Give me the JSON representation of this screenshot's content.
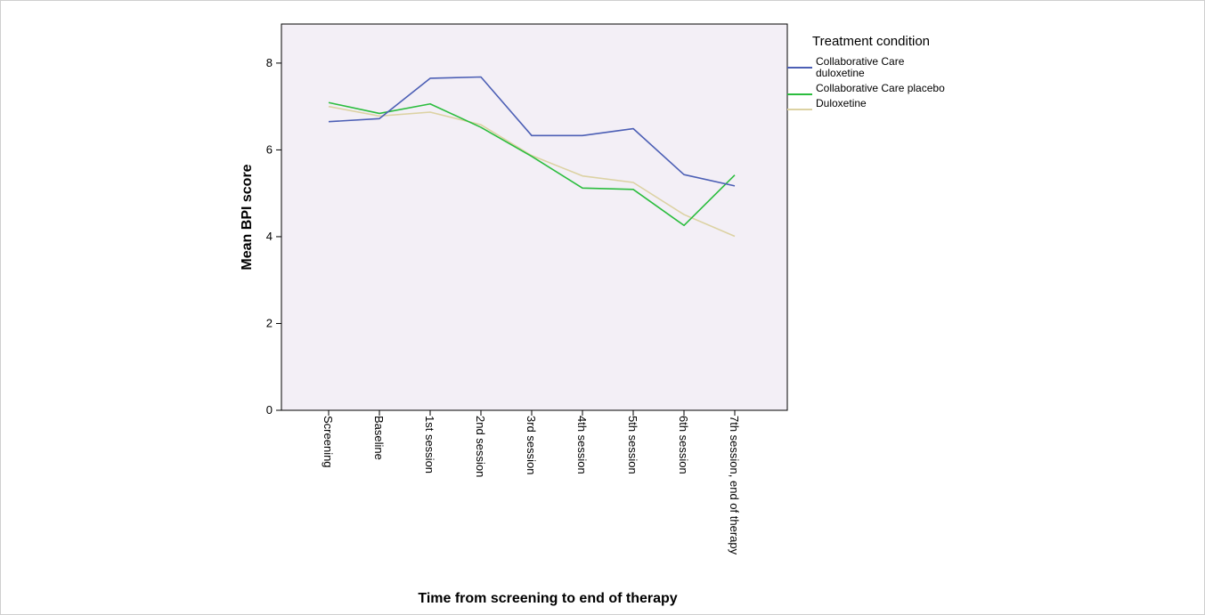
{
  "chart_data": {
    "type": "line",
    "title": "",
    "xlabel": "Time from screening to end of therapy",
    "ylabel": "Mean BPI score",
    "ylim": [
      0,
      8.9
    ],
    "yticks": [
      0,
      2,
      4,
      6,
      8
    ],
    "grid": false,
    "legend_title": "Treatment condition",
    "legend_position": "right",
    "categories": [
      "Screening",
      "Baseline",
      "1st session",
      "2nd session",
      "3rd session",
      "4th session",
      "5th session",
      "6th session",
      "7th session, end of therapy"
    ],
    "series": [
      {
        "name": "Collaborative Care duloxetine",
        "name_lines": [
          "Collaborative Care",
          "duloxetine"
        ],
        "color": "#4c5fb5",
        "values": [
          6.65,
          6.72,
          7.65,
          7.68,
          6.33,
          6.33,
          6.49,
          5.43,
          5.17
        ]
      },
      {
        "name": "Collaborative Care placebo",
        "name_lines": [
          "Collaborative Care placebo"
        ],
        "color": "#2bbd3e",
        "values": [
          7.09,
          6.84,
          7.06,
          6.52,
          5.85,
          5.12,
          5.09,
          4.26,
          5.42
        ]
      },
      {
        "name": "Duloxetine",
        "name_lines": [
          "Duloxetine"
        ],
        "color": "#dcd2a3",
        "values": [
          7.0,
          6.78,
          6.87,
          6.58,
          5.87,
          5.4,
          5.25,
          4.51,
          4.01
        ]
      }
    ]
  }
}
